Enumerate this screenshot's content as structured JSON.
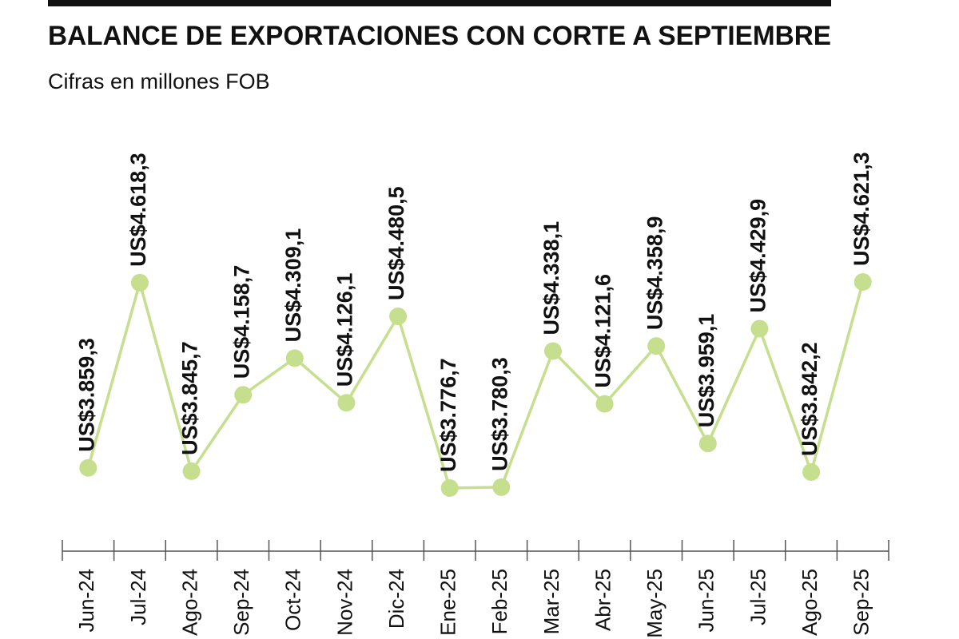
{
  "chart_data": {
    "type": "line",
    "title": "BALANCE DE EXPORTACIONES CON CORTE A SEPTIEMBRE",
    "subtitle": "Cifras en millones FOB",
    "categories": [
      "Jun-24",
      "Jul-24",
      "Ago-24",
      "Sep-24",
      "Oct-24",
      "Nov-24",
      "Dic-24",
      "Ene-25",
      "Feb-25",
      "Mar-25",
      "Abr-25",
      "May-25",
      "Jun-25",
      "Jul-25",
      "Ago-25",
      "Sep-25"
    ],
    "values": [
      3859.3,
      4618.3,
      3845.7,
      4158.7,
      4309.1,
      4126.1,
      4480.5,
      3776.7,
      3780.3,
      4338.1,
      4121.6,
      4358.9,
      3959.1,
      4429.9,
      3842.2,
      4621.3
    ],
    "value_labels": [
      "US$3.859,3",
      "US$4.618,3",
      "US$3.845,7",
      "US$4.158,7",
      "US$4.309,1",
      "US$4.126,1",
      "US$4.480,5",
      "US$3.776,7",
      "US$3.780,3",
      "US$4.338,1",
      "US$4.121,6",
      "US$4.358,9",
      "US$3.959,1",
      "US$4.429,9",
      "US$3.842,2",
      "US$4.621,3"
    ],
    "color": "#c6df8e"
  }
}
